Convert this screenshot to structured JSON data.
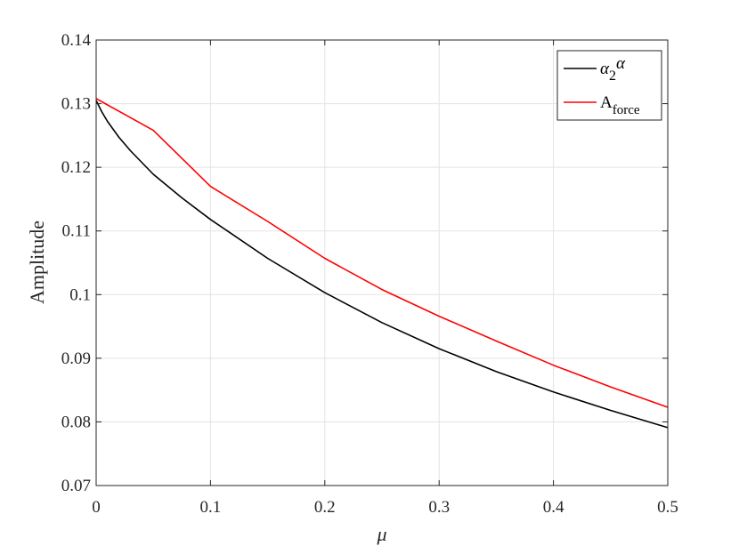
{
  "chart_data": {
    "type": "line",
    "title": "",
    "xlabel": "μ",
    "ylabel": "Amplitude",
    "xlim": [
      0,
      0.5
    ],
    "ylim": [
      0.07,
      0.14
    ],
    "xticks": [
      "0",
      "0.1",
      "0.2",
      "0.3",
      "0.4",
      "0.5"
    ],
    "yticks": [
      "0.07",
      "0.08",
      "0.09",
      "0.1",
      "0.11",
      "0.12",
      "0.13",
      "0.14"
    ],
    "grid": true,
    "legend_position": "top-right",
    "series": [
      {
        "name": "α2α",
        "legend": {
          "base": "α",
          "sub": "2",
          "tail": "α"
        },
        "color": "#000000",
        "x": [
          0,
          0.005,
          0.01,
          0.02,
          0.03,
          0.05,
          0.075,
          0.1,
          0.15,
          0.2,
          0.25,
          0.3,
          0.35,
          0.4,
          0.45,
          0.5
        ],
        "y": [
          0.1305,
          0.1287,
          0.1272,
          0.1247,
          0.1226,
          0.1189,
          0.1152,
          0.1118,
          0.1057,
          0.1003,
          0.0956,
          0.0915,
          0.0879,
          0.0847,
          0.0818,
          0.0791
        ]
      },
      {
        "name": "Aforce",
        "legend": {
          "base": "A",
          "sub": "force",
          "tail": ""
        },
        "color": "#ff0000",
        "x": [
          0,
          0.01,
          0.025,
          0.05,
          0.1,
          0.15,
          0.2,
          0.25,
          0.3,
          0.35,
          0.4,
          0.45,
          0.5
        ],
        "y": [
          0.1308,
          0.1298,
          0.1283,
          0.1258,
          0.117,
          0.1115,
          0.1057,
          0.1008,
          0.0966,
          0.0927,
          0.0889,
          0.0855,
          0.0823
        ]
      }
    ]
  }
}
